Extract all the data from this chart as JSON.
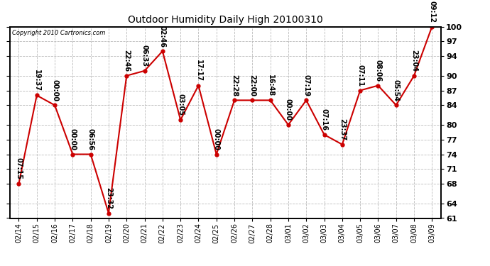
{
  "title": "Outdoor Humidity Daily High 20100310",
  "copyright": "Copyright 2010 Cartronics.com",
  "background_color": "#ffffff",
  "plot_bg_color": "#ffffff",
  "grid_color": "#bbbbbb",
  "line_color": "#cc0000",
  "marker_color": "#cc0000",
  "dates": [
    "02/14",
    "02/15",
    "02/16",
    "02/17",
    "02/18",
    "02/19",
    "02/20",
    "02/21",
    "02/22",
    "02/23",
    "02/24",
    "02/25",
    "02/26",
    "02/27",
    "02/28",
    "03/01",
    "03/02",
    "03/03",
    "03/04",
    "03/05",
    "03/06",
    "03/07",
    "03/08",
    "03/09"
  ],
  "values": [
    68,
    86,
    84,
    74,
    74,
    62,
    90,
    91,
    95,
    81,
    88,
    74,
    85,
    85,
    85,
    80,
    85,
    78,
    76,
    87,
    88,
    84,
    90,
    100
  ],
  "annotations": [
    "07:15",
    "19:37",
    "00:00",
    "00:00",
    "06:56",
    "23:32",
    "22:46",
    "06:33",
    "02:46",
    "03:05",
    "17:17",
    "00:00",
    "22:28",
    "22:00",
    "16:48",
    "00:00",
    "07:19",
    "07:16",
    "23:37",
    "07:11",
    "08:06",
    "05:54",
    "23:04",
    "09:12"
  ],
  "ylim_min": 61,
  "ylim_max": 100,
  "yticks": [
    61,
    64,
    68,
    71,
    74,
    77,
    80,
    84,
    87,
    90,
    94,
    97,
    100
  ],
  "ann_fontsize": 7,
  "tick_fontsize": 7,
  "title_fontsize": 10
}
